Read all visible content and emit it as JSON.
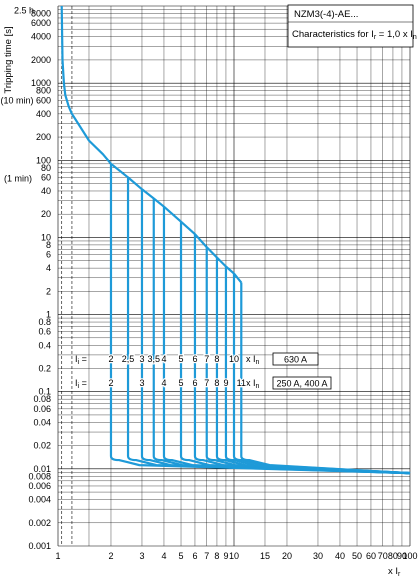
{
  "chart_data": {
    "type": "line",
    "title": "NZM3(-4)-AE...",
    "subtitle": "Characteristics for I",
    "subtitle_sub": "r",
    "subtitle_tail": " = 1,0 x I",
    "subtitle_tail_sub": "n",
    "xlabel": "x I",
    "xlabel_sub": "r",
    "ylabel": "Tripping time [s]",
    "xscale": "log",
    "yscale": "log",
    "xlim": [
      1,
      100
    ],
    "ylim": [
      0.001,
      10000
    ],
    "grid": true,
    "x_ticks": [
      {
        "v": 1,
        "l": "1"
      },
      {
        "v": 2,
        "l": "2"
      },
      {
        "v": 3,
        "l": "3"
      },
      {
        "v": 4,
        "l": "4"
      },
      {
        "v": 5,
        "l": "5"
      },
      {
        "v": 6,
        "l": "6"
      },
      {
        "v": 7,
        "l": "7"
      },
      {
        "v": 8,
        "l": "8"
      },
      {
        "v": 9,
        "l": "9"
      },
      {
        "v": 10,
        "l": "10"
      },
      {
        "v": 15,
        "l": "15"
      },
      {
        "v": 20,
        "l": "20"
      },
      {
        "v": 30,
        "l": "30"
      },
      {
        "v": 40,
        "l": "40"
      },
      {
        "v": 50,
        "l": "50"
      },
      {
        "v": 60,
        "l": "60"
      },
      {
        "v": 70,
        "l": "70"
      },
      {
        "v": 80,
        "l": "80"
      },
      {
        "v": 90,
        "l": "90"
      },
      {
        "v": 100,
        "l": "100"
      }
    ],
    "y_ticks": [
      {
        "v": 8000,
        "l": "8000"
      },
      {
        "v": 6000,
        "l": "6000"
      },
      {
        "v": 4000,
        "l": "4000"
      },
      {
        "v": 2000,
        "l": "2000"
      },
      {
        "v": 1000,
        "l": "1000"
      },
      {
        "v": 800,
        "l": "800"
      },
      {
        "v": 600,
        "l": "(10 min) 600"
      },
      {
        "v": 400,
        "l": "400"
      },
      {
        "v": 200,
        "l": "200"
      },
      {
        "v": 100,
        "l": "100"
      },
      {
        "v": 80,
        "l": "80"
      },
      {
        "v": 60,
        "l": "60"
      },
      {
        "v": 40,
        "l": "40"
      },
      {
        "v": 20,
        "l": "20"
      },
      {
        "v": 10,
        "l": "10"
      },
      {
        "v": 8,
        "l": "8"
      },
      {
        "v": 6,
        "l": "6"
      },
      {
        "v": 4,
        "l": "4"
      },
      {
        "v": 2,
        "l": "2"
      },
      {
        "v": 1,
        "l": "1"
      },
      {
        "v": 0.8,
        "l": "0.8"
      },
      {
        "v": 0.6,
        "l": "0.6"
      },
      {
        "v": 0.4,
        "l": "0.4"
      },
      {
        "v": 0.2,
        "l": "0.2"
      },
      {
        "v": 0.1,
        "l": "0.1"
      },
      {
        "v": 0.08,
        "l": "0.08"
      },
      {
        "v": 0.06,
        "l": "0.06"
      },
      {
        "v": 0.04,
        "l": "0.04"
      },
      {
        "v": 0.02,
        "l": "0.02"
      },
      {
        "v": 0.01,
        "l": "0.01"
      },
      {
        "v": 0.008,
        "l": "0.008"
      },
      {
        "v": 0.006,
        "l": "0.006"
      },
      {
        "v": 0.004,
        "l": "0.004"
      },
      {
        "v": 0.002,
        "l": "0.002"
      },
      {
        "v": 0.001,
        "l": "0.001"
      }
    ],
    "y_extra_labels": [
      {
        "v": 9000,
        "l": "2.5 h"
      },
      {
        "v": 60,
        "l": "(1 min)"
      }
    ],
    "overload_curve": {
      "x": [
        1.05,
        1.06,
        1.08,
        1.1,
        1.15,
        1.2,
        1.3,
        1.5,
        1.8,
        2.0,
        2.5,
        3.0,
        3.5,
        4.0,
        5.0,
        6.0,
        7.0,
        8.0,
        9.0,
        10.0,
        11.0
      ],
      "y": [
        10000,
        2000,
        1000,
        700,
        500,
        400,
        300,
        180,
        120,
        90,
        60,
        42,
        32,
        25,
        16,
        11,
        7.5,
        5.5,
        4.2,
        3.4,
        2.6
      ]
    },
    "short_circuit_settings": [
      2,
      2.5,
      3,
      3.5,
      4,
      5,
      6,
      7,
      8,
      10
    ],
    "short_circuit_settings_2": [
      2,
      3,
      4,
      5,
      6,
      7,
      8,
      9,
      11
    ],
    "instantaneous_time": 0.013,
    "tail_end": {
      "x": 100,
      "y": 0.0088
    },
    "row1": {
      "label": "I",
      "label_sub": "i",
      "label_tail": " =",
      "values": [
        "2",
        "2,5",
        "3",
        "3,5",
        "4",
        "5",
        "6",
        "7",
        "8",
        "10"
      ],
      "unit": "x I",
      "unit_sub": "n",
      "rating": "630 A",
      "y": 0.18
    },
    "row2": {
      "label": "I",
      "label_sub": "i",
      "label_tail": " =",
      "values": [
        "2",
        "3",
        "4",
        "5",
        "6",
        "7",
        "8",
        "9",
        "11"
      ],
      "unit": "x I",
      "unit_sub": "n",
      "rating": "250 A, 400 A",
      "y": 0.11
    },
    "colors": {
      "curve": "#1e9ad8",
      "grid": "#000000"
    }
  }
}
